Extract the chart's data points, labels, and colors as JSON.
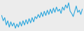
{
  "values": [
    3,
    -2,
    1,
    -6,
    -2,
    -8,
    -3,
    -7,
    -4,
    -9,
    -5,
    -8,
    -3,
    -7,
    -2,
    -6,
    -1,
    -5,
    0,
    -4,
    1,
    -3,
    2,
    0,
    4,
    1,
    6,
    2,
    7,
    3,
    8,
    4,
    9,
    5,
    10,
    6,
    11,
    7,
    9,
    5,
    11,
    8,
    13,
    10,
    15,
    7,
    5,
    2,
    7,
    12,
    6,
    8,
    4,
    9
  ],
  "line_color": "#2ca7de",
  "bg_color": "#ececec",
  "linewidth": 0.8
}
